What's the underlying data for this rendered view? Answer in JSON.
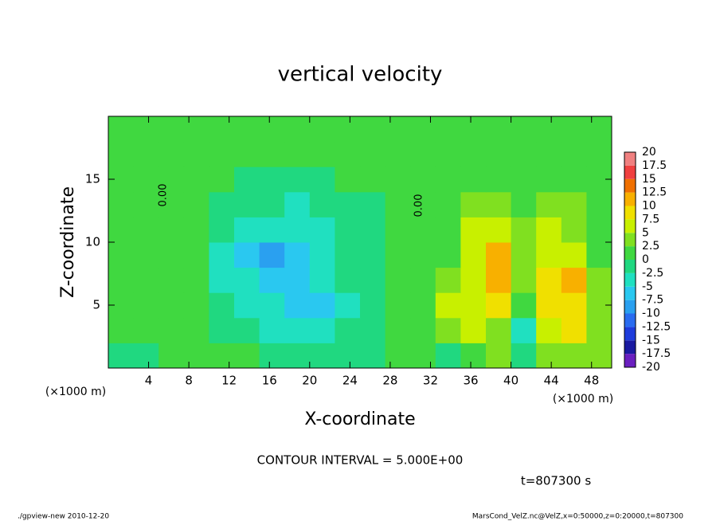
{
  "chart_data": {
    "type": "heatmap",
    "title": "vertical velocity",
    "x_label": "X-coordinate",
    "y_label": "Z-coordinate",
    "x_unit": "(×1000 m)",
    "contour_interval": "CONTOUR INTERVAL = 5.000E+00",
    "time_label": "t=807300 s",
    "footer_left": "./gpview-new  2010-12-20",
    "footer_right": "MarsCond_VelZ.nc@VelZ,x=0:50000,z=0:20000,t=807300",
    "contour_label": "0.00",
    "xlim": [
      0,
      50
    ],
    "xticks": [
      4,
      8,
      12,
      16,
      20,
      24,
      28,
      32,
      36,
      40,
      44,
      48
    ],
    "ylim": [
      0,
      20
    ],
    "yticks": [
      5,
      10,
      15
    ],
    "x": [
      1.25,
      3.75,
      6.25,
      8.75,
      11.25,
      13.75,
      16.25,
      18.75,
      21.25,
      23.75,
      26.25,
      28.75,
      31.25,
      33.75,
      36.25,
      38.75,
      41.25,
      43.75,
      46.25,
      48.75
    ],
    "z": [
      1,
      3,
      5,
      7,
      9,
      11,
      13,
      15,
      17,
      19
    ],
    "values": [
      [
        -1,
        -1,
        0,
        0.5,
        0.5,
        0,
        -0.5,
        -1,
        -1,
        -1,
        -1,
        0,
        0.5,
        -0.5,
        2,
        3,
        -2,
        3,
        4,
        3
      ],
      [
        0.5,
        0.5,
        0.5,
        0.5,
        -0.5,
        -2,
        -3,
        -4,
        -3,
        -2,
        -1,
        0,
        0.5,
        4,
        6,
        4,
        -3,
        6,
        8,
        4
      ],
      [
        0.5,
        0.5,
        0.5,
        0,
        -2,
        -4,
        -5,
        -6,
        -6,
        -3,
        -1,
        0,
        0.5,
        6,
        5,
        8,
        2,
        9,
        9,
        3
      ],
      [
        0.5,
        0.5,
        0.5,
        0,
        -3,
        -5,
        -7,
        -6,
        -5,
        -2,
        -1,
        0,
        0.5,
        3,
        5,
        11,
        3,
        8,
        10,
        3
      ],
      [
        1,
        0.5,
        0.5,
        0,
        -3,
        -6,
        -8,
        -6,
        -4,
        -2,
        -0.5,
        0,
        0.5,
        2,
        5,
        12,
        4,
        6,
        6,
        2
      ],
      [
        1,
        0.5,
        0.5,
        0,
        -2,
        -5,
        -5,
        -5,
        -3,
        -1.5,
        -0.5,
        0,
        0.5,
        2,
        5,
        6,
        3,
        5,
        4,
        1.5
      ],
      [
        0.5,
        0.5,
        0.5,
        0,
        -1,
        -2,
        -2,
        -3,
        -2,
        -1,
        -0.5,
        0,
        0.5,
        1,
        3,
        3,
        2,
        4,
        3,
        1
      ],
      [
        0.5,
        0.5,
        0.5,
        0.5,
        0,
        -0.5,
        -1,
        -1,
        -0.5,
        0,
        0,
        0.5,
        0.5,
        0.5,
        1,
        1.5,
        1,
        2,
        2,
        1
      ],
      [
        0.5,
        0.5,
        0.5,
        0.5,
        0.5,
        0.5,
        0.5,
        0.5,
        0.5,
        0.5,
        0.5,
        0.5,
        0.5,
        0.5,
        0.5,
        1,
        1,
        1,
        1,
        0.5
      ],
      [
        0.5,
        0.5,
        0.5,
        0.5,
        0.5,
        0.5,
        0.5,
        0.5,
        0.5,
        0.5,
        0.5,
        0.5,
        0.5,
        0.5,
        0.5,
        0.5,
        0.5,
        0.5,
        0.5,
        0.5
      ]
    ],
    "levels": [
      -20,
      -17.5,
      -15,
      -12.5,
      -10,
      -7.5,
      -5,
      -2.5,
      0,
      2.5,
      5,
      7.5,
      10,
      12.5,
      15,
      17.5,
      20
    ],
    "colors": [
      "#6a1fbf",
      "#1a1aa0",
      "#1e3cdc",
      "#2a6cf0",
      "#2aa0f0",
      "#2ac8f0",
      "#20e0c0",
      "#20d880",
      "#40d840",
      "#80e020",
      "#c8f000",
      "#f0e000",
      "#f8b000",
      "#f07000",
      "#f04040",
      "#f08080"
    ]
  }
}
